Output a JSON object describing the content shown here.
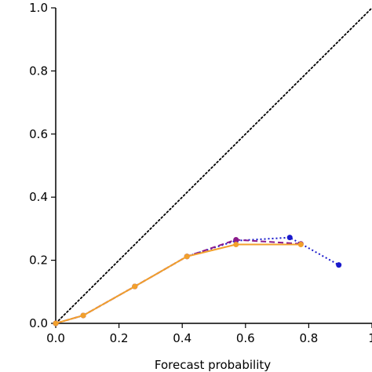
{
  "chart_data": {
    "type": "line",
    "title": "",
    "xlabel": "Forecast probability",
    "ylabel": "",
    "xlim": [
      0,
      1
    ],
    "ylim": [
      0,
      1
    ],
    "xticks": [
      "0.0",
      "0.2",
      "0.4",
      "0.6",
      "0.8",
      "1"
    ],
    "yticks": [
      "0.0",
      "0.2",
      "0.4",
      "0.6",
      "0.8",
      "1.0"
    ],
    "grid": false,
    "reference_line": {
      "x": [
        0,
        1
      ],
      "y": [
        0,
        1
      ],
      "style": "dotted",
      "color": "#000000"
    },
    "series": [
      {
        "style": "dotted",
        "color": "#1a1acc",
        "x": [
          0.0,
          0.087,
          0.25,
          0.415,
          0.57,
          0.74,
          0.895
        ],
        "y": [
          0.0,
          0.025,
          0.117,
          0.212,
          0.262,
          0.272,
          0.185
        ]
      },
      {
        "style": "dashed",
        "color": "#8b1a8b",
        "x": [
          0.0,
          0.087,
          0.25,
          0.415,
          0.57,
          0.775
        ],
        "y": [
          0.0,
          0.025,
          0.117,
          0.212,
          0.265,
          0.252
        ]
      },
      {
        "style": "solid",
        "color": "#f2a02c",
        "x": [
          0.0,
          0.087,
          0.25,
          0.415,
          0.57,
          0.775
        ],
        "y": [
          0.0,
          0.025,
          0.117,
          0.212,
          0.25,
          0.25
        ]
      }
    ]
  }
}
